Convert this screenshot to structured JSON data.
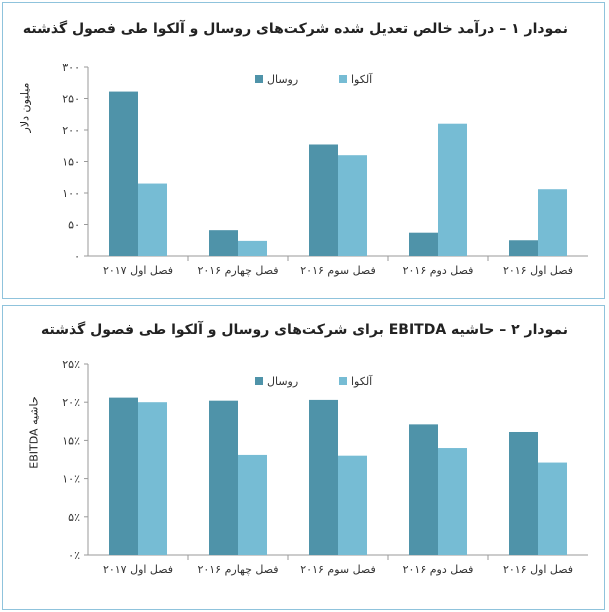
{
  "chart_data": [
    {
      "type": "bar",
      "title": "نمودار ۱ – درآمد خالص تعدیل شده شرکت‌های روسال و آلکوا طی فصول گذشته",
      "ylabel": "میلیون دلار",
      "categories": [
        "فصل اول ۲۰۱۷",
        "فصل چهارم ۲۰۱۶",
        "فصل سوم ۲۰۱۶",
        "فصل دوم ۲۰۱۶",
        "فصل اول ۲۰۱۶"
      ],
      "series": [
        {
          "name": "روسال",
          "color": "#4f93a9",
          "values": [
            261,
            41,
            177,
            37,
            25
          ]
        },
        {
          "name": "آلکوا",
          "color": "#76bcd4",
          "values": [
            115,
            24,
            160,
            210,
            106
          ]
        }
      ],
      "ylim": [
        0,
        300
      ],
      "yticks": [
        0,
        50,
        100,
        150,
        200,
        250,
        300
      ],
      "ytick_labels": [
        "۰",
        "۵۰",
        "۱۰۰",
        "۱۵۰",
        "۲۰۰",
        "۲۵۰",
        "۳۰۰"
      ],
      "legend": "top",
      "grid": false
    },
    {
      "type": "bar",
      "title": "نمودار ۲ – حاشیه EBITDA برای شرکت‌های روسال و آلکوا طی فصول گذشته",
      "ylabel": "حاشیه EBITDA",
      "categories": [
        "فصل اول ۲۰۱۷",
        "فصل چهارم ۲۰۱۶",
        "فصل سوم ۲۰۱۶",
        "فصل دوم ۲۰۱۶",
        "فصل اول ۲۰۱۶"
      ],
      "series": [
        {
          "name": "روسال",
          "color": "#4f93a9",
          "values": [
            20.6,
            20.2,
            20.3,
            17.1,
            16.1
          ]
        },
        {
          "name": "آلکوا",
          "color": "#76bcd4",
          "values": [
            20.0,
            13.1,
            13.0,
            14.0,
            12.1
          ]
        }
      ],
      "ylim": [
        0,
        25
      ],
      "yticks": [
        0,
        5,
        10,
        15,
        20,
        25
      ],
      "ytick_labels": [
        "۰٪",
        "۵٪",
        "۱۰٪",
        "۱۵٪",
        "۲۰٪",
        "۲۵٪"
      ],
      "legend": "top",
      "grid": false
    }
  ]
}
